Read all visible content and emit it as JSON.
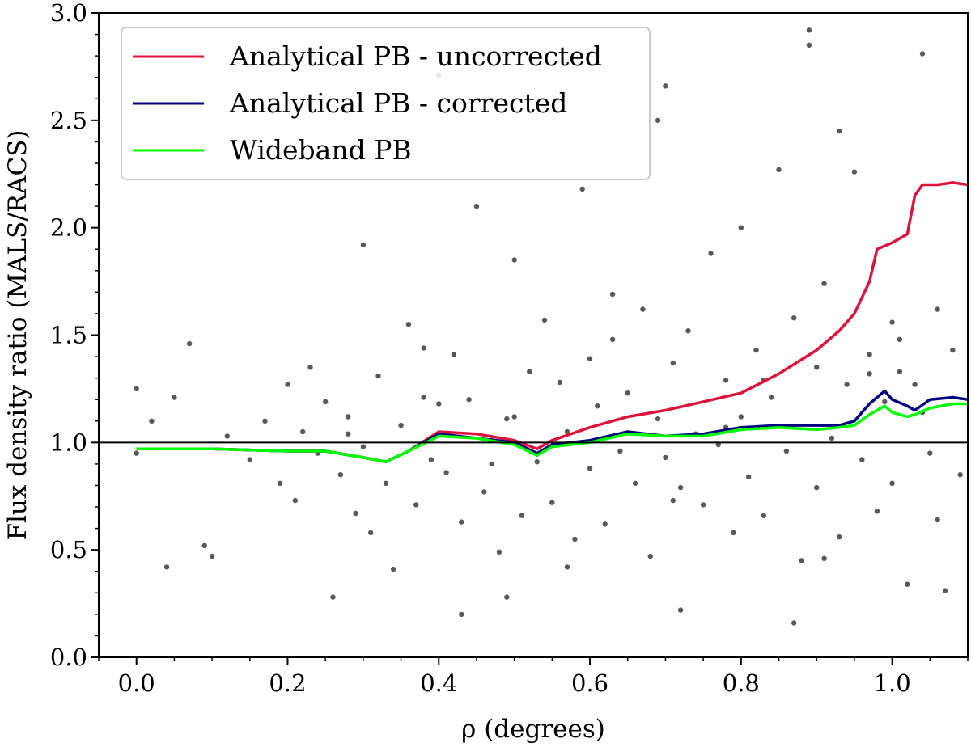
{
  "chart_data": {
    "type": "scatter",
    "title": "",
    "xlabel": "ρ (degrees)",
    "ylabel": "Flux density ratio (MALS/RACS)",
    "xlim": [
      -0.05,
      1.1
    ],
    "ylim": [
      0.0,
      3.0
    ],
    "x_ticks": [
      0.0,
      0.2,
      0.4,
      0.6,
      0.8,
      1.0
    ],
    "x_tick_labels": [
      "0.0",
      "0.2",
      "0.4",
      "0.6",
      "0.8",
      "1.0"
    ],
    "y_ticks": [
      0.0,
      0.5,
      1.0,
      1.5,
      2.0,
      2.5,
      3.0
    ],
    "y_tick_labels": [
      "0.0",
      "0.5",
      "1.0",
      "1.5",
      "2.0",
      "2.5",
      "3.0"
    ],
    "grid": false,
    "legend_position": "top-left",
    "reference_line": {
      "y": 1.0,
      "color": "#000000"
    },
    "series": [
      {
        "name": "Analytical PB - uncorrected",
        "color": "#dc143c",
        "x": [
          0.0,
          0.1,
          0.2,
          0.25,
          0.3,
          0.33,
          0.36,
          0.4,
          0.45,
          0.5,
          0.53,
          0.55,
          0.6,
          0.65,
          0.7,
          0.75,
          0.8,
          0.85,
          0.9,
          0.93,
          0.95,
          0.97,
          0.98,
          1.0,
          1.02,
          1.03,
          1.04,
          1.06,
          1.08,
          1.1
        ],
        "y": [
          0.97,
          0.97,
          0.96,
          0.96,
          0.93,
          0.91,
          0.96,
          1.05,
          1.04,
          1.01,
          0.97,
          1.01,
          1.07,
          1.12,
          1.15,
          1.19,
          1.23,
          1.32,
          1.43,
          1.52,
          1.6,
          1.75,
          1.9,
          1.93,
          1.97,
          2.15,
          2.2,
          2.2,
          2.21,
          2.2
        ]
      },
      {
        "name": "Analytical PB - corrected",
        "color": "#000080",
        "x": [
          0.0,
          0.1,
          0.2,
          0.25,
          0.3,
          0.33,
          0.36,
          0.4,
          0.45,
          0.5,
          0.53,
          0.55,
          0.6,
          0.65,
          0.7,
          0.75,
          0.8,
          0.85,
          0.9,
          0.93,
          0.95,
          0.97,
          0.99,
          1.0,
          1.02,
          1.03,
          1.05,
          1.08,
          1.1
        ],
        "y": [
          0.97,
          0.97,
          0.96,
          0.96,
          0.93,
          0.91,
          0.96,
          1.04,
          1.02,
          1.0,
          0.95,
          0.99,
          1.01,
          1.05,
          1.03,
          1.04,
          1.07,
          1.08,
          1.08,
          1.08,
          1.1,
          1.18,
          1.24,
          1.2,
          1.17,
          1.15,
          1.2,
          1.21,
          1.2
        ]
      },
      {
        "name": "Wideband PB",
        "color": "#00ff00",
        "x": [
          0.0,
          0.1,
          0.2,
          0.25,
          0.3,
          0.33,
          0.36,
          0.4,
          0.45,
          0.5,
          0.53,
          0.55,
          0.6,
          0.65,
          0.7,
          0.75,
          0.8,
          0.85,
          0.9,
          0.93,
          0.95,
          0.97,
          0.99,
          1.0,
          1.02,
          1.03,
          1.05,
          1.08,
          1.1
        ],
        "y": [
          0.97,
          0.97,
          0.96,
          0.96,
          0.93,
          0.91,
          0.96,
          1.03,
          1.02,
          0.99,
          0.94,
          0.98,
          1.0,
          1.04,
          1.03,
          1.03,
          1.06,
          1.07,
          1.06,
          1.07,
          1.08,
          1.13,
          1.17,
          1.14,
          1.12,
          1.13,
          1.16,
          1.18,
          1.18
        ]
      }
    ],
    "scatter_points": {
      "name": "sources",
      "color": "#000000",
      "x": [
        0.0,
        0.0,
        0.02,
        0.04,
        0.05,
        0.07,
        0.09,
        0.1,
        0.12,
        0.15,
        0.17,
        0.19,
        0.2,
        0.21,
        0.22,
        0.23,
        0.24,
        0.25,
        0.26,
        0.27,
        0.28,
        0.29,
        0.3,
        0.3,
        0.31,
        0.32,
        0.33,
        0.34,
        0.35,
        0.36,
        0.37,
        0.38,
        0.39,
        0.4,
        0.4,
        0.41,
        0.42,
        0.43,
        0.44,
        0.45,
        0.46,
        0.47,
        0.48,
        0.49,
        0.5,
        0.5,
        0.51,
        0.52,
        0.53,
        0.54,
        0.55,
        0.56,
        0.57,
        0.58,
        0.59,
        0.6,
        0.6,
        0.61,
        0.62,
        0.63,
        0.64,
        0.65,
        0.66,
        0.67,
        0.68,
        0.69,
        0.7,
        0.7,
        0.71,
        0.72,
        0.73,
        0.74,
        0.75,
        0.76,
        0.77,
        0.78,
        0.79,
        0.8,
        0.8,
        0.81,
        0.82,
        0.83,
        0.84,
        0.85,
        0.86,
        0.87,
        0.88,
        0.89,
        0.9,
        0.9,
        0.91,
        0.92,
        0.93,
        0.94,
        0.95,
        0.96,
        0.97,
        0.98,
        0.99,
        1.0,
        1.0,
        1.01,
        1.02,
        1.03,
        1.04,
        1.05,
        1.06,
        1.07,
        1.08,
        1.09,
        0.43,
        0.49,
        0.57,
        0.69,
        0.71,
        0.83,
        0.87,
        0.89,
        0.93,
        1.04,
        0.38,
        0.47,
        0.63,
        0.72,
        0.78,
        0.91,
        0.97,
        1.01,
        1.06,
        0.28
      ],
      "y": [
        1.25,
        0.95,
        1.1,
        0.42,
        1.21,
        1.46,
        0.52,
        0.47,
        1.03,
        0.92,
        1.1,
        0.81,
        1.27,
        0.73,
        1.05,
        1.35,
        0.95,
        1.19,
        0.28,
        0.85,
        1.12,
        0.67,
        1.92,
        0.98,
        0.58,
        1.31,
        0.81,
        0.41,
        1.08,
        1.55,
        0.71,
        1.44,
        0.92,
        2.71,
        1.18,
        0.86,
        1.41,
        0.63,
        1.2,
        2.1,
        0.77,
        1.01,
        0.49,
        0.28,
        1.85,
        1.12,
        0.66,
        1.33,
        0.91,
        1.57,
        0.72,
        1.28,
        1.05,
        0.55,
        2.18,
        0.88,
        1.39,
        1.17,
        0.62,
        1.48,
        0.96,
        1.23,
        0.81,
        1.62,
        0.47,
        1.11,
        2.66,
        0.93,
        1.37,
        0.22,
        1.52,
        1.04,
        0.71,
        1.88,
        0.99,
        1.29,
        0.58,
        1.12,
        2.0,
        0.84,
        1.43,
        0.66,
        1.21,
        2.27,
        0.96,
        1.58,
        0.45,
        2.92,
        1.35,
        0.79,
        1.74,
        1.02,
        0.56,
        1.27,
        2.26,
        0.92,
        1.41,
        0.68,
        1.19,
        1.56,
        0.81,
        1.33,
        0.34,
        1.27,
        2.81,
        0.95,
        1.62,
        0.31,
        1.43,
        0.85,
        0.2,
        1.11,
        0.42,
        2.5,
        0.73,
        1.29,
        0.16,
        2.85,
        2.45,
        1.14,
        1.21,
        0.9,
        1.69,
        0.79,
        1.07,
        0.46,
        1.32,
        1.48,
        0.64,
        1.04
      ]
    }
  }
}
